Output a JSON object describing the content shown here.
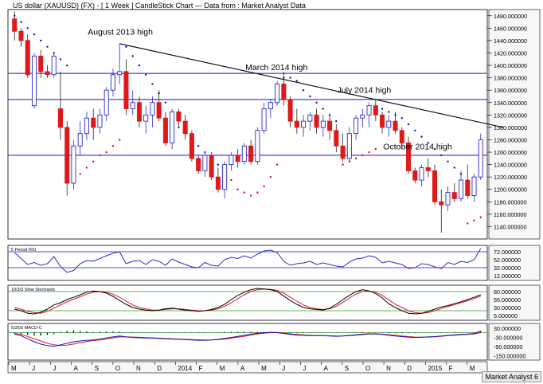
{
  "header": {
    "title": "US dollar (XAUUSD) (FX) - [ 1 Week ] CandleStick Chart — Data from : Market Analyst Data"
  },
  "footer": {
    "brand": "Market Analyst 6"
  },
  "colors": {
    "up": "#2a2ad0",
    "down": "#e01818",
    "hline": "#1010cc",
    "trend": "#000000",
    "sarUp": "#d01010",
    "sarDown": "#1010c0",
    "stochK": "#000000",
    "stochD": "#e01818",
    "macd": "#1010c0",
    "signal": "#e01818",
    "grid": "#2a9a2a"
  },
  "chart_data": [
    {
      "type": "candlestick",
      "panel": "price",
      "title": "US dollar (XAUUSD) (FX) - [ 1 Week ] CandleStick Chart — Data from : Market Analyst Data",
      "x_month_labels": [
        "M",
        "J",
        "J",
        "A",
        "S",
        "O",
        "N",
        "D",
        "2014",
        "F",
        "M",
        "A",
        "M",
        "J",
        "J",
        "A",
        "S",
        "O",
        "N",
        "D",
        "2015",
        "F",
        "M"
      ],
      "ylim": [
        1120,
        1490
      ],
      "y_ticks": [
        1140,
        1160,
        1180,
        1200,
        1220,
        1240,
        1260,
        1280,
        1300,
        1320,
        1340,
        1360,
        1380,
        1400,
        1420,
        1440,
        1460,
        1480
      ],
      "candles": [
        [
          1475,
          1487,
          1440,
          1455
        ],
        [
          1455,
          1460,
          1430,
          1440
        ],
        [
          1440,
          1450,
          1380,
          1385
        ],
        [
          1335,
          1420,
          1330,
          1415
        ],
        [
          1415,
          1425,
          1380,
          1390
        ],
        [
          1390,
          1400,
          1380,
          1385
        ],
        [
          1385,
          1420,
          1380,
          1415
        ],
        [
          1330,
          1390,
          1280,
          1300
        ],
        [
          1300,
          1310,
          1190,
          1210
        ],
        [
          1210,
          1280,
          1200,
          1270
        ],
        [
          1270,
          1310,
          1255,
          1290
        ],
        [
          1290,
          1325,
          1280,
          1315
        ],
        [
          1315,
          1330,
          1280,
          1300
        ],
        [
          1300,
          1330,
          1290,
          1320
        ],
        [
          1320,
          1365,
          1310,
          1360
        ],
        [
          1360,
          1395,
          1350,
          1385
        ],
        [
          1385,
          1435,
          1370,
          1390
        ],
        [
          1390,
          1410,
          1320,
          1330
        ],
        [
          1330,
          1360,
          1320,
          1340
        ],
        [
          1340,
          1350,
          1300,
          1310
        ],
        [
          1310,
          1335,
          1290,
          1320
        ],
        [
          1320,
          1350,
          1300,
          1340
        ],
        [
          1340,
          1360,
          1310,
          1315
        ],
        [
          1315,
          1325,
          1270,
          1275
        ],
        [
          1275,
          1330,
          1265,
          1325
        ],
        [
          1325,
          1330,
          1300,
          1310
        ],
        [
          1310,
          1320,
          1280,
          1290
        ],
        [
          1290,
          1295,
          1245,
          1250
        ],
        [
          1250,
          1255,
          1225,
          1230
        ],
        [
          1230,
          1260,
          1220,
          1255
        ],
        [
          1255,
          1260,
          1215,
          1220
        ],
        [
          1220,
          1235,
          1195,
          1200
        ],
        [
          1200,
          1245,
          1185,
          1240
        ],
        [
          1240,
          1260,
          1230,
          1255
        ],
        [
          1255,
          1265,
          1235,
          1245
        ],
        [
          1245,
          1275,
          1240,
          1270
        ],
        [
          1270,
          1280,
          1240,
          1245
        ],
        [
          1245,
          1300,
          1240,
          1295
        ],
        [
          1295,
          1340,
          1290,
          1330
        ],
        [
          1330,
          1345,
          1315,
          1340
        ],
        [
          1340,
          1375,
          1335,
          1370
        ],
        [
          1370,
          1390,
          1335,
          1345
        ],
        [
          1345,
          1350,
          1300,
          1310
        ],
        [
          1310,
          1330,
          1290,
          1300
        ],
        [
          1300,
          1320,
          1285,
          1310
        ],
        [
          1310,
          1325,
          1295,
          1320
        ],
        [
          1320,
          1330,
          1290,
          1300
        ],
        [
          1300,
          1320,
          1285,
          1310
        ],
        [
          1310,
          1320,
          1280,
          1295
        ],
        [
          1295,
          1305,
          1260,
          1270
        ],
        [
          1270,
          1290,
          1245,
          1250
        ],
        [
          1250,
          1300,
          1245,
          1290
        ],
        [
          1290,
          1320,
          1280,
          1315
        ],
        [
          1315,
          1330,
          1300,
          1320
        ],
        [
          1320,
          1340,
          1300,
          1335
        ],
        [
          1335,
          1345,
          1310,
          1320
        ],
        [
          1320,
          1325,
          1290,
          1300
        ],
        [
          1300,
          1320,
          1285,
          1310
        ],
        [
          1310,
          1325,
          1290,
          1295
        ],
        [
          1295,
          1300,
          1270,
          1275
        ],
        [
          1275,
          1285,
          1225,
          1230
        ],
        [
          1230,
          1235,
          1210,
          1215
        ],
        [
          1215,
          1240,
          1205,
          1235
        ],
        [
          1235,
          1250,
          1220,
          1230
        ],
        [
          1230,
          1240,
          1175,
          1180
        ],
        [
          1180,
          1200,
          1130,
          1175
        ],
        [
          1175,
          1205,
          1165,
          1195
        ],
        [
          1195,
          1210,
          1180,
          1185
        ],
        [
          1185,
          1230,
          1180,
          1215
        ],
        [
          1215,
          1240,
          1185,
          1190
        ],
        [
          1190,
          1225,
          1180,
          1220
        ],
        [
          1220,
          1290,
          1215,
          1280
        ]
      ],
      "sar": [
        1480,
        1470,
        1460,
        1450,
        1440,
        1430,
        1420,
        1410,
        1400,
        1215,
        1225,
        1235,
        1245,
        1255,
        1260,
        1270,
        1280,
        1430,
        1415,
        1400,
        1385,
        1370,
        1355,
        1340,
        1320,
        1300,
        1290,
        1280,
        1270,
        1260,
        1250,
        1240,
        1230,
        1215,
        1200,
        1195,
        1190,
        1195,
        1205,
        1220,
        1240,
        1380,
        1380,
        1375,
        1360,
        1350,
        1340,
        1330,
        1320,
        1310,
        1240,
        1245,
        1250,
        1255,
        1260,
        1265,
        1330,
        1325,
        1320,
        1315,
        1305,
        1295,
        1285,
        1275,
        1265,
        1255,
        1245,
        1235,
        1225,
        1145,
        1150,
        1155
      ],
      "resistance_levels": [
        1387,
        1345,
        1255
      ],
      "trendline": {
        "from_index": 16,
        "from_price": 1435,
        "to_price": 1300
      },
      "annotations": [
        {
          "text": "August 2013 high",
          "index": 16,
          "price": 1447
        },
        {
          "text": "March 2014 high",
          "index": 40,
          "price": 1390
        },
        {
          "text": "July 2014 high",
          "index": 54,
          "price": 1353
        },
        {
          "text": "October 2014 high",
          "index": 61,
          "price": 1262
        }
      ]
    },
    {
      "type": "line",
      "panel": "rsi",
      "title": "5 Period RSI",
      "ylim": [
        0,
        88
      ],
      "y_ticks": [
        12,
        32,
        52,
        72
      ],
      "hlines": [
        72,
        32
      ],
      "values": [
        70,
        55,
        40,
        45,
        38,
        42,
        60,
        35,
        20,
        25,
        42,
        50,
        48,
        55,
        62,
        68,
        72,
        42,
        48,
        50,
        40,
        52,
        48,
        38,
        54,
        46,
        40,
        34,
        32,
        45,
        38,
        36,
        52,
        58,
        55,
        62,
        56,
        66,
        74,
        76,
        70,
        48,
        38,
        42,
        44,
        48,
        40,
        44,
        40,
        36,
        34,
        46,
        54,
        56,
        62,
        58,
        44,
        48,
        44,
        40,
        30,
        32,
        42,
        40,
        34,
        30,
        45,
        40,
        48,
        45,
        52,
        80
      ]
    },
    {
      "type": "line",
      "panel": "stochastic",
      "title": "10/3/3 Slow Stochastic",
      "ylim": [
        -10,
        100
      ],
      "y_ticks": [
        5,
        30,
        55,
        80
      ],
      "hlines": [
        80,
        20
      ],
      "series": [
        {
          "name": "%K",
          "values": [
            25,
            20,
            12,
            10,
            15,
            25,
            38,
            45,
            55,
            62,
            70,
            78,
            82,
            80,
            75,
            65,
            52,
            40,
            30,
            25,
            22,
            20,
            22,
            26,
            28,
            25,
            22,
            20,
            18,
            20,
            24,
            30,
            40,
            55,
            68,
            78,
            86,
            90,
            88,
            86,
            80,
            66,
            52,
            40,
            30,
            26,
            24,
            22,
            28,
            40,
            55,
            68,
            80,
            86,
            82,
            74,
            60,
            42,
            30,
            20,
            12,
            10,
            12,
            18,
            25,
            32,
            36,
            42,
            48,
            55,
            62,
            70
          ]
        },
        {
          "name": "%D",
          "values": [
            30,
            25,
            18,
            14,
            12,
            18,
            28,
            38,
            48,
            56,
            64,
            72,
            78,
            80,
            78,
            72,
            62,
            50,
            38,
            30,
            26,
            22,
            22,
            24,
            26,
            26,
            24,
            22,
            20,
            20,
            22,
            26,
            34,
            45,
            58,
            70,
            80,
            86,
            88,
            87,
            84,
            75,
            62,
            50,
            38,
            30,
            26,
            24,
            26,
            34,
            46,
            60,
            72,
            80,
            82,
            78,
            68,
            54,
            40,
            30,
            20,
            14,
            12,
            14,
            20,
            27,
            33,
            39,
            45,
            51,
            58,
            66
          ]
        }
      ]
    },
    {
      "type": "line",
      "panel": "macd",
      "title": "5/25/5 MACD-C",
      "ylim": [
        -180,
        60
      ],
      "y_ticks": [
        30,
        -30,
        -90,
        -150
      ],
      "series": [
        {
          "name": "MACD",
          "values": [
            -10,
            -20,
            -40,
            -60,
            -75,
            -85,
            -90,
            -80,
            -70,
            -60,
            -55,
            -50,
            -48,
            -42,
            -35,
            -28,
            -22,
            -28,
            -32,
            -34,
            -35,
            -36,
            -38,
            -40,
            -42,
            -44,
            -46,
            -48,
            -50,
            -50,
            -48,
            -44,
            -38,
            -32,
            -25,
            -18,
            -10,
            -4,
            0,
            2,
            0,
            -6,
            -12,
            -16,
            -18,
            -20,
            -20,
            -20,
            -22,
            -24,
            -22,
            -18,
            -14,
            -10,
            -8,
            -8,
            -12,
            -18,
            -22,
            -26,
            -30,
            -32,
            -30,
            -28,
            -26,
            -22,
            -18,
            -14,
            -12,
            -10,
            -6,
            10
          ]
        },
        {
          "name": "Signal",
          "values": [
            -5,
            -12,
            -25,
            -40,
            -55,
            -70,
            -80,
            -85,
            -82,
            -75,
            -66,
            -58,
            -52,
            -48,
            -42,
            -35,
            -28,
            -27,
            -29,
            -31,
            -33,
            -34,
            -36,
            -38,
            -40,
            -42,
            -44,
            -46,
            -47,
            -48,
            -48,
            -46,
            -42,
            -37,
            -30,
            -24,
            -16,
            -9,
            -4,
            0,
            1,
            -2,
            -8,
            -12,
            -15,
            -17,
            -19,
            -20,
            -21,
            -22,
            -22,
            -20,
            -17,
            -13,
            -10,
            -9,
            -10,
            -14,
            -18,
            -22,
            -26,
            -29,
            -30,
            -29,
            -27,
            -24,
            -20,
            -17,
            -14,
            -12,
            -9,
            0
          ]
        }
      ],
      "histogram": [
        -5,
        -8,
        -15,
        -20,
        -20,
        -15,
        -10,
        5,
        12,
        15,
        11,
        8,
        4,
        6,
        7,
        7,
        6,
        -1,
        -3,
        -3,
        -2,
        -2,
        -2,
        -2,
        -2,
        -2,
        -2,
        -2,
        -3,
        -2,
        0,
        2,
        4,
        5,
        5,
        6,
        6,
        5,
        4,
        2,
        -1,
        -4,
        -4,
        -4,
        -3,
        -3,
        -1,
        0,
        -1,
        -2,
        0,
        2,
        3,
        3,
        2,
        1,
        -2,
        -4,
        -4,
        -4,
        -4,
        -3,
        0,
        1,
        1,
        2,
        2,
        3,
        2,
        2,
        3,
        10
      ]
    }
  ]
}
